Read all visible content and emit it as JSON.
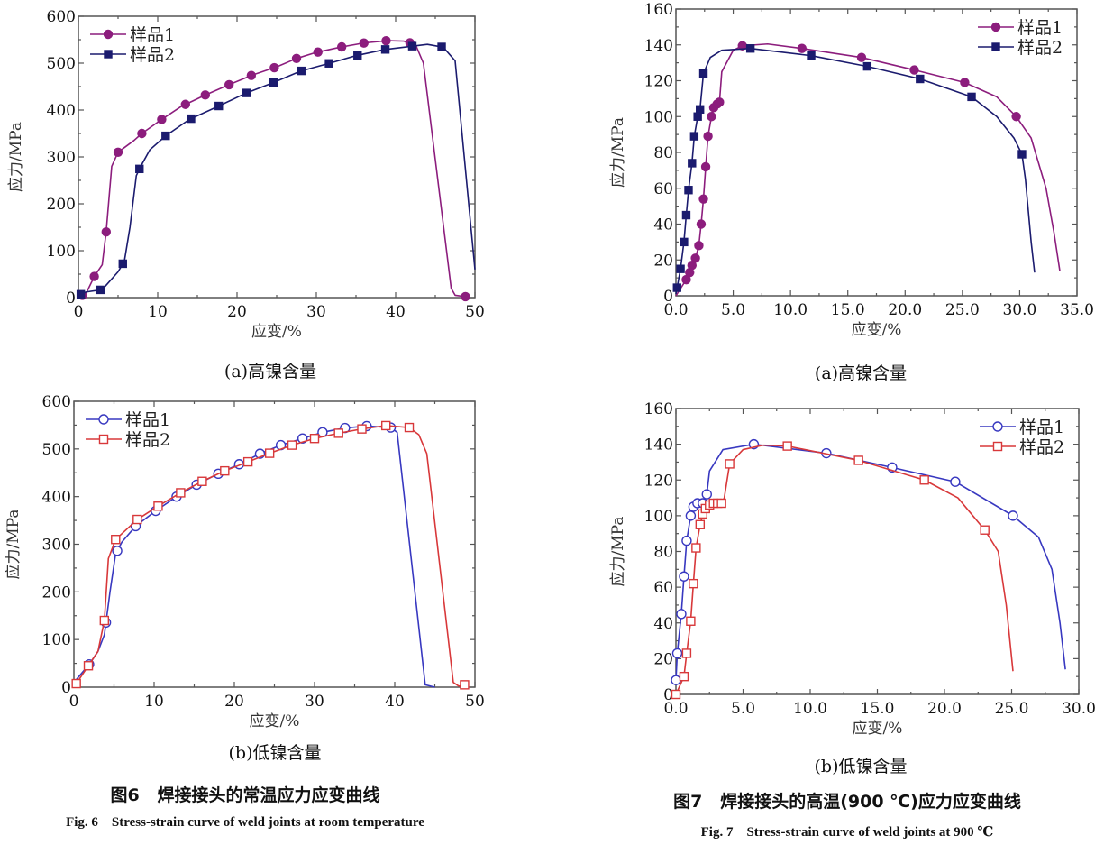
{
  "figures": [
    {
      "title_cn": "图6   焊接接头的常温应力应变曲线",
      "title_en": "Fig. 6    Stress-strain curve of weld joints at room temperature"
    },
    {
      "title_cn": "图7   焊接接头的高温(900 ℃)应力应变曲线",
      "title_en": "Fig. 7    Stress-strain curve of weld joints at 900 ℃"
    }
  ],
  "chart_data": [
    {
      "type": "line",
      "caption": "(a)高镍含量",
      "xlabel": "应变/%",
      "ylabel": "应力/MPa",
      "xlim": [
        0,
        50
      ],
      "ylim": [
        0,
        600
      ],
      "xticks": [
        0,
        10,
        20,
        30,
        40,
        50
      ],
      "yticks": [
        0,
        100,
        200,
        300,
        400,
        500,
        600
      ],
      "xtick_labels": [
        "0",
        "10",
        "20",
        "30",
        "40",
        "50"
      ],
      "ytick_labels": [
        "0",
        "100",
        "200",
        "300",
        "400",
        "500",
        "600"
      ],
      "legend": "top-left",
      "grid": false,
      "series": [
        {
          "name": "样品1",
          "color": "#8c1d7d",
          "marker": "circle",
          "filled": true,
          "points": [
            [
              0,
              0
            ],
            [
              1,
              10
            ],
            [
              2,
              45
            ],
            [
              3,
              70
            ],
            [
              3.5,
              140
            ],
            [
              4.2,
              280
            ],
            [
              5,
              310
            ],
            [
              7,
              335
            ],
            [
              8,
              350
            ],
            [
              10.5,
              380
            ],
            [
              13,
              408
            ],
            [
              16,
              432
            ],
            [
              19,
              454
            ],
            [
              22,
              475
            ],
            [
              25,
              492
            ],
            [
              27.5,
              510
            ],
            [
              30,
              523
            ],
            [
              33,
              534
            ],
            [
              36,
              543
            ],
            [
              39,
              548
            ],
            [
              41,
              547
            ],
            [
              42.5,
              540
            ],
            [
              43.5,
              500
            ],
            [
              47,
              20
            ],
            [
              47.5,
              5
            ],
            [
              48.8,
              2
            ]
          ],
          "marker_x": [
            0.5,
            2,
            3.5,
            5,
            8,
            10.5,
            13.5,
            16,
            19,
            21.8,
            24.7,
            27.5,
            30.2,
            33.2,
            36,
            38.8,
            41.8,
            48.8
          ]
        },
        {
          "name": "样品2",
          "color": "#1b1b6e",
          "marker": "square",
          "filled": true,
          "points": [
            [
              0,
              5
            ],
            [
              1,
              12
            ],
            [
              3,
              17
            ],
            [
              5,
              55
            ],
            [
              5.8,
              78
            ],
            [
              6.5,
              150
            ],
            [
              7.3,
              260
            ],
            [
              7.8,
              278
            ],
            [
              9,
              315
            ],
            [
              11,
              345
            ],
            [
              14,
              380
            ],
            [
              17.5,
              407
            ],
            [
              21,
              435
            ],
            [
              24.5,
              458
            ],
            [
              28,
              483
            ],
            [
              31.5,
              499
            ],
            [
              35,
              516
            ],
            [
              38.6,
              529
            ],
            [
              42,
              536
            ],
            [
              44,
              540
            ],
            [
              46,
              534
            ],
            [
              47.5,
              505
            ],
            [
              50,
              60
            ]
          ],
          "marker_x": [
            0.3,
            2.8,
            5.6,
            7.7,
            11,
            14.2,
            17.7,
            21.2,
            24.6,
            28.1,
            31.6,
            35.2,
            38.7,
            42.1,
            45.8
          ]
        }
      ]
    },
    {
      "type": "line",
      "caption": "(a)高镍含量",
      "xlabel": "应变/%",
      "ylabel": "应力/MPa",
      "xlim": [
        0,
        35
      ],
      "ylim": [
        0,
        160
      ],
      "xticks": [
        0,
        5,
        10,
        15,
        20,
        25,
        30,
        35
      ],
      "yticks": [
        0,
        20,
        40,
        60,
        80,
        100,
        120,
        140,
        160
      ],
      "xtick_labels": [
        "0.0",
        "5.0",
        "10.0",
        "15.0",
        "20.0",
        "25.0",
        "30.0",
        "35.0"
      ],
      "ytick_labels": [
        "0",
        "20",
        "40",
        "60",
        "80",
        "100",
        "120",
        "140",
        "160"
      ],
      "legend": "top-right",
      "grid": false,
      "series": [
        {
          "name": "样品1",
          "color": "#8c1d7d",
          "marker": "circle",
          "filled": true,
          "points": [
            [
              0,
              0
            ],
            [
              0.9,
              9
            ],
            [
              1.2,
              13
            ],
            [
              1.4,
              17
            ],
            [
              1.7,
              21
            ],
            [
              2,
              28
            ],
            [
              2.2,
              40
            ],
            [
              2.4,
              54
            ],
            [
              2.6,
              72
            ],
            [
              2.8,
              89
            ],
            [
              3.1,
              100
            ],
            [
              3.3,
              105
            ],
            [
              3.6,
              107
            ],
            [
              3.8,
              108
            ],
            [
              4,
              125
            ],
            [
              5,
              137
            ],
            [
              5.8,
              139.5
            ],
            [
              8,
              140.5
            ],
            [
              11,
              138
            ],
            [
              16.2,
              133
            ],
            [
              20.8,
              126
            ],
            [
              25.2,
              119
            ],
            [
              28,
              111
            ],
            [
              29.7,
              100
            ],
            [
              31,
              88
            ],
            [
              32.3,
              60
            ],
            [
              33,
              35
            ],
            [
              33.5,
              14
            ]
          ],
          "marker_x": [
            0.9,
            1.2,
            1.4,
            1.7,
            2,
            2.2,
            2.4,
            2.6,
            2.8,
            3.1,
            3.3,
            3.6,
            3.8,
            5.8,
            11,
            16.2,
            20.8,
            25.2,
            29.7
          ]
        },
        {
          "name": "样品2",
          "color": "#1b1b6e",
          "marker": "square",
          "filled": true,
          "points": [
            [
              0,
              1
            ],
            [
              0.4,
              15
            ],
            [
              0.7,
              30
            ],
            [
              0.9,
              45
            ],
            [
              1.1,
              59
            ],
            [
              1.4,
              74
            ],
            [
              1.6,
              89
            ],
            [
              1.9,
              100
            ],
            [
              2.1,
              104
            ],
            [
              2.4,
              124
            ],
            [
              3,
              133
            ],
            [
              4,
              137
            ],
            [
              6.5,
              138
            ],
            [
              11.8,
              134
            ],
            [
              16.7,
              128
            ],
            [
              21.3,
              121
            ],
            [
              25.8,
              111
            ],
            [
              28,
              100
            ],
            [
              29.5,
              88
            ],
            [
              30.2,
              79
            ],
            [
              30.5,
              65
            ],
            [
              31,
              30
            ],
            [
              31.3,
              13
            ]
          ],
          "marker_x": [
            0.1,
            0.4,
            0.7,
            0.9,
            1.1,
            1.4,
            1.6,
            1.9,
            2.1,
            2.4,
            6.5,
            11.8,
            16.7,
            21.3,
            25.8,
            30.2
          ]
        }
      ]
    },
    {
      "type": "line",
      "caption": "(b)低镍含量",
      "xlabel": "应变/%",
      "ylabel": "应力/MPa",
      "xlim": [
        0,
        50
      ],
      "ylim": [
        0,
        600
      ],
      "xticks": [
        0,
        10,
        20,
        30,
        40,
        50
      ],
      "yticks": [
        0,
        100,
        200,
        300,
        400,
        500,
        600
      ],
      "xtick_labels": [
        "0",
        "10",
        "20",
        "30",
        "40",
        "50"
      ],
      "ytick_labels": [
        "0",
        "100",
        "200",
        "300",
        "400",
        "500",
        "600"
      ],
      "legend": "top-left",
      "grid": false,
      "series": [
        {
          "name": "样品1",
          "color": "#3838c0",
          "marker": "circle",
          "filled": false,
          "points": [
            [
              0,
              10
            ],
            [
              2,
              50
            ],
            [
              3,
              75
            ],
            [
              3.8,
              110
            ],
            [
              4.5,
              200
            ],
            [
              5.2,
              280
            ],
            [
              6,
              305
            ],
            [
              7.7,
              338
            ],
            [
              10.2,
              370
            ],
            [
              12.8,
              400
            ],
            [
              15.3,
              425
            ],
            [
              18,
              448
            ],
            [
              20.6,
              468
            ],
            [
              23.2,
              490
            ],
            [
              25.8,
              508
            ],
            [
              28.5,
              522
            ],
            [
              31,
              535
            ],
            [
              33.8,
              544
            ],
            [
              36.5,
              548
            ],
            [
              39.5,
              545
            ],
            [
              40.3,
              535
            ],
            [
              43.8,
              5
            ],
            [
              45,
              0
            ]
          ],
          "marker_x": [
            1.9,
            4,
            5.4,
            7.7,
            10.2,
            12.8,
            15.3,
            18,
            20.6,
            23.2,
            25.8,
            28.5,
            31,
            33.8,
            36.5,
            39.5
          ]
        },
        {
          "name": "样品2",
          "color": "#d8383a",
          "marker": "square",
          "filled": false,
          "points": [
            [
              0,
              0
            ],
            [
              1.8,
              45
            ],
            [
              3,
              75
            ],
            [
              3.8,
              140
            ],
            [
              4.3,
              270
            ],
            [
              5.2,
              310
            ],
            [
              7.9,
              352
            ],
            [
              10.5,
              380
            ],
            [
              13.3,
              408
            ],
            [
              16,
              432
            ],
            [
              18.8,
              454
            ],
            [
              21.7,
              473
            ],
            [
              24.4,
              491
            ],
            [
              27.2,
              508
            ],
            [
              30,
              522
            ],
            [
              33,
              533
            ],
            [
              35.9,
              542
            ],
            [
              38.9,
              549
            ],
            [
              41.8,
              545
            ],
            [
              43,
              530
            ],
            [
              44,
              490
            ],
            [
              47.3,
              10
            ],
            [
              48,
              2
            ],
            [
              48.7,
              5
            ]
          ],
          "marker_x": [
            0.3,
            1.8,
            3.8,
            5.2,
            7.9,
            10.5,
            13.3,
            16,
            18.8,
            21.7,
            24.4,
            27.2,
            30,
            33,
            35.9,
            38.9,
            41.8,
            48.7
          ]
        }
      ]
    },
    {
      "type": "line",
      "caption": "(b)低镍含量",
      "xlabel": "应变/%",
      "ylabel": "应力/MPa",
      "xlim": [
        0,
        30
      ],
      "ylim": [
        0,
        160
      ],
      "xticks": [
        0,
        5,
        10,
        15,
        20,
        25,
        30
      ],
      "yticks": [
        0,
        20,
        40,
        60,
        80,
        100,
        120,
        140,
        160
      ],
      "xtick_labels": [
        "0.0",
        "5.0",
        "10.0",
        "15.0",
        "20.0",
        "25.0",
        "30.0"
      ],
      "ytick_labels": [
        "0",
        "20",
        "40",
        "60",
        "80",
        "100",
        "120",
        "140",
        "160"
      ],
      "legend": "top-right",
      "grid": false,
      "series": [
        {
          "name": "样品1",
          "color": "#3838c0",
          "marker": "circle",
          "filled": false,
          "points": [
            [
              0,
              8
            ],
            [
              0.1,
              23
            ],
            [
              0.4,
              45
            ],
            [
              0.6,
              66
            ],
            [
              0.8,
              86
            ],
            [
              1.1,
              100
            ],
            [
              1.3,
              105
            ],
            [
              1.6,
              107
            ],
            [
              2,
              107
            ],
            [
              2.3,
              112
            ],
            [
              2.5,
              125
            ],
            [
              3.5,
              137
            ],
            [
              5.8,
              140
            ],
            [
              11.2,
              135
            ],
            [
              16.1,
              127
            ],
            [
              20.8,
              119
            ],
            [
              25.1,
              100
            ],
            [
              27,
              88
            ],
            [
              28,
              70
            ],
            [
              28.6,
              40
            ],
            [
              29,
              14
            ]
          ],
          "marker_x": [
            0,
            0.1,
            0.4,
            0.6,
            0.8,
            1.1,
            1.3,
            1.6,
            2,
            2.3,
            5.8,
            11.2,
            16.1,
            20.8,
            25.1
          ]
        },
        {
          "name": "样品2",
          "color": "#d8383a",
          "marker": "square",
          "filled": false,
          "points": [
            [
              0,
              0
            ],
            [
              0.6,
              10
            ],
            [
              0.8,
              23
            ],
            [
              1.1,
              41
            ],
            [
              1.3,
              62
            ],
            [
              1.5,
              82
            ],
            [
              1.8,
              95
            ],
            [
              2,
              101
            ],
            [
              2.2,
              104
            ],
            [
              2.5,
              106
            ],
            [
              2.8,
              107
            ],
            [
              3.4,
              107
            ],
            [
              3.6,
              110
            ],
            [
              4,
              129
            ],
            [
              5,
              137
            ],
            [
              6.5,
              139.5
            ],
            [
              8.3,
              139
            ],
            [
              13.6,
              131
            ],
            [
              18.5,
              120
            ],
            [
              21,
              110
            ],
            [
              23,
              92
            ],
            [
              24,
              80
            ],
            [
              24.6,
              50
            ],
            [
              25.1,
              13
            ]
          ],
          "marker_x": [
            0,
            0.6,
            0.8,
            1.1,
            1.3,
            1.5,
            1.8,
            2,
            2.2,
            2.5,
            2.8,
            3.1,
            3.4,
            4,
            8.3,
            13.6,
            18.5,
            23
          ]
        }
      ]
    }
  ]
}
